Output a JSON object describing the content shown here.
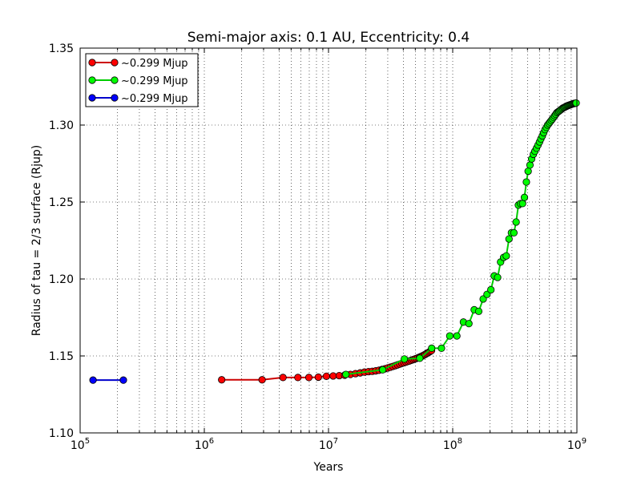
{
  "chart_data": {
    "type": "line",
    "title": "Semi-major axis: 0.1 AU, Eccentricity: 0.4",
    "xlabel": "Years",
    "ylabel": "Radius of tau = 2/3 surface (Rjup)",
    "xscale": "log",
    "xlim": [
      100000,
      1000000000
    ],
    "ylim": [
      1.1,
      1.35
    ],
    "x_ticks": [
      {
        "value": 100000,
        "base": "10",
        "exp": "5"
      },
      {
        "value": 1000000,
        "base": "10",
        "exp": "6"
      },
      {
        "value": 10000000,
        "base": "10",
        "exp": "7"
      },
      {
        "value": 100000000,
        "base": "10",
        "exp": "8"
      },
      {
        "value": 1000000000,
        "base": "10",
        "exp": "9"
      }
    ],
    "y_ticks": [
      {
        "value": 1.1,
        "label": "1.10"
      },
      {
        "value": 1.15,
        "label": "1.15"
      },
      {
        "value": 1.2,
        "label": "1.20"
      },
      {
        "value": 1.25,
        "label": "1.25"
      },
      {
        "value": 1.3,
        "label": "1.30"
      },
      {
        "value": 1.35,
        "label": "1.35"
      }
    ],
    "grid": true,
    "legend_position": "top-left",
    "series": [
      {
        "name": "~0.299 Mjup",
        "color": "#ff0000",
        "line_color": "#cc0000",
        "x": [
          1380000,
          2920000,
          4300000,
          5670000,
          6950000,
          8280000,
          9620000,
          10900000,
          12200000,
          13500000,
          15000000,
          16500000,
          18000000,
          19500000,
          21000000,
          22500000,
          24000000,
          25500000,
          27000000,
          28500000,
          30000000,
          31500000,
          33000000,
          34500000,
          36000000,
          37500000,
          39000000,
          40500000,
          42000000,
          43500000,
          45000000,
          46500000,
          48000000,
          49500000,
          51000000,
          52500000,
          54000000,
          55500000,
          57000000,
          58500000,
          60000000,
          61500000,
          63000000,
          64500000,
          66000000,
          67500000
        ],
        "y": [
          1.1345,
          1.1345,
          1.136,
          1.136,
          1.136,
          1.1362,
          1.1368,
          1.137,
          1.1372,
          1.1375,
          1.138,
          1.1385,
          1.139,
          1.1395,
          1.1398,
          1.14,
          1.1403,
          1.1407,
          1.1412,
          1.1417,
          1.1422,
          1.1427,
          1.1432,
          1.1437,
          1.1442,
          1.1447,
          1.1452,
          1.1456,
          1.146,
          1.1464,
          1.1468,
          1.1472,
          1.1476,
          1.148,
          1.1484,
          1.1488,
          1.1492,
          1.1496,
          1.15,
          1.1505,
          1.151,
          1.1515,
          1.152,
          1.1525,
          1.153,
          1.1535
        ]
      },
      {
        "name": "~0.299 Mjup",
        "color": "#00ff00",
        "line_color": "#00cc00",
        "x": [
          13800000,
          27300000,
          40800000,
          54300000,
          67700000,
          81200000,
          94700000,
          108000000,
          122000000,
          135000000,
          149000000,
          162000000,
          176000000,
          189000000,
          203000000,
          216000000,
          230000000,
          243000000,
          257000000,
          270000000,
          284000000,
          297000000,
          311000000,
          324000000,
          338000000,
          351000000,
          365000000,
          378000000,
          392000000,
          405000000,
          419000000,
          432000000,
          446000000,
          459000000,
          473000000,
          486000000,
          500000000,
          513000000,
          527000000,
          540000000,
          554000000,
          568000000,
          581000000,
          595000000,
          608000000,
          622000000,
          635000000,
          649000000,
          662000000,
          676000000,
          689000000,
          703000000,
          716000000,
          730000000,
          743000000,
          757000000,
          770000000,
          784000000,
          797000000,
          811000000,
          824000000,
          838000000,
          851000000,
          865000000,
          878000000,
          892000000,
          905000000,
          919000000,
          932000000,
          946000000,
          959000000,
          973000000,
          986000000
        ],
        "y": [
          1.138,
          1.141,
          1.148,
          1.1485,
          1.155,
          1.155,
          1.163,
          1.163,
          1.172,
          1.171,
          1.18,
          1.179,
          1.187,
          1.19,
          1.193,
          1.202,
          1.201,
          1.211,
          1.214,
          1.215,
          1.226,
          1.23,
          1.23,
          1.237,
          1.248,
          1.249,
          1.249,
          1.253,
          1.263,
          1.27,
          1.274,
          1.278,
          1.281,
          1.283,
          1.285,
          1.287,
          1.289,
          1.291,
          1.293,
          1.295,
          1.297,
          1.2985,
          1.3,
          1.301,
          1.302,
          1.303,
          1.304,
          1.305,
          1.306,
          1.307,
          1.308,
          1.3085,
          1.309,
          1.3095,
          1.31,
          1.3105,
          1.311,
          1.3113,
          1.3116,
          1.3119,
          1.3122,
          1.3125,
          1.3127,
          1.3129,
          1.3131,
          1.3133,
          1.3135,
          1.3137,
          1.3139,
          1.314,
          1.3141,
          1.3142,
          1.3143
        ]
      },
      {
        "name": "~0.299 Mjup",
        "color": "#0000ff",
        "line_color": "#0000cc",
        "x": [
          127000,
          223000
        ],
        "y": [
          1.1343,
          1.1343
        ]
      }
    ]
  }
}
